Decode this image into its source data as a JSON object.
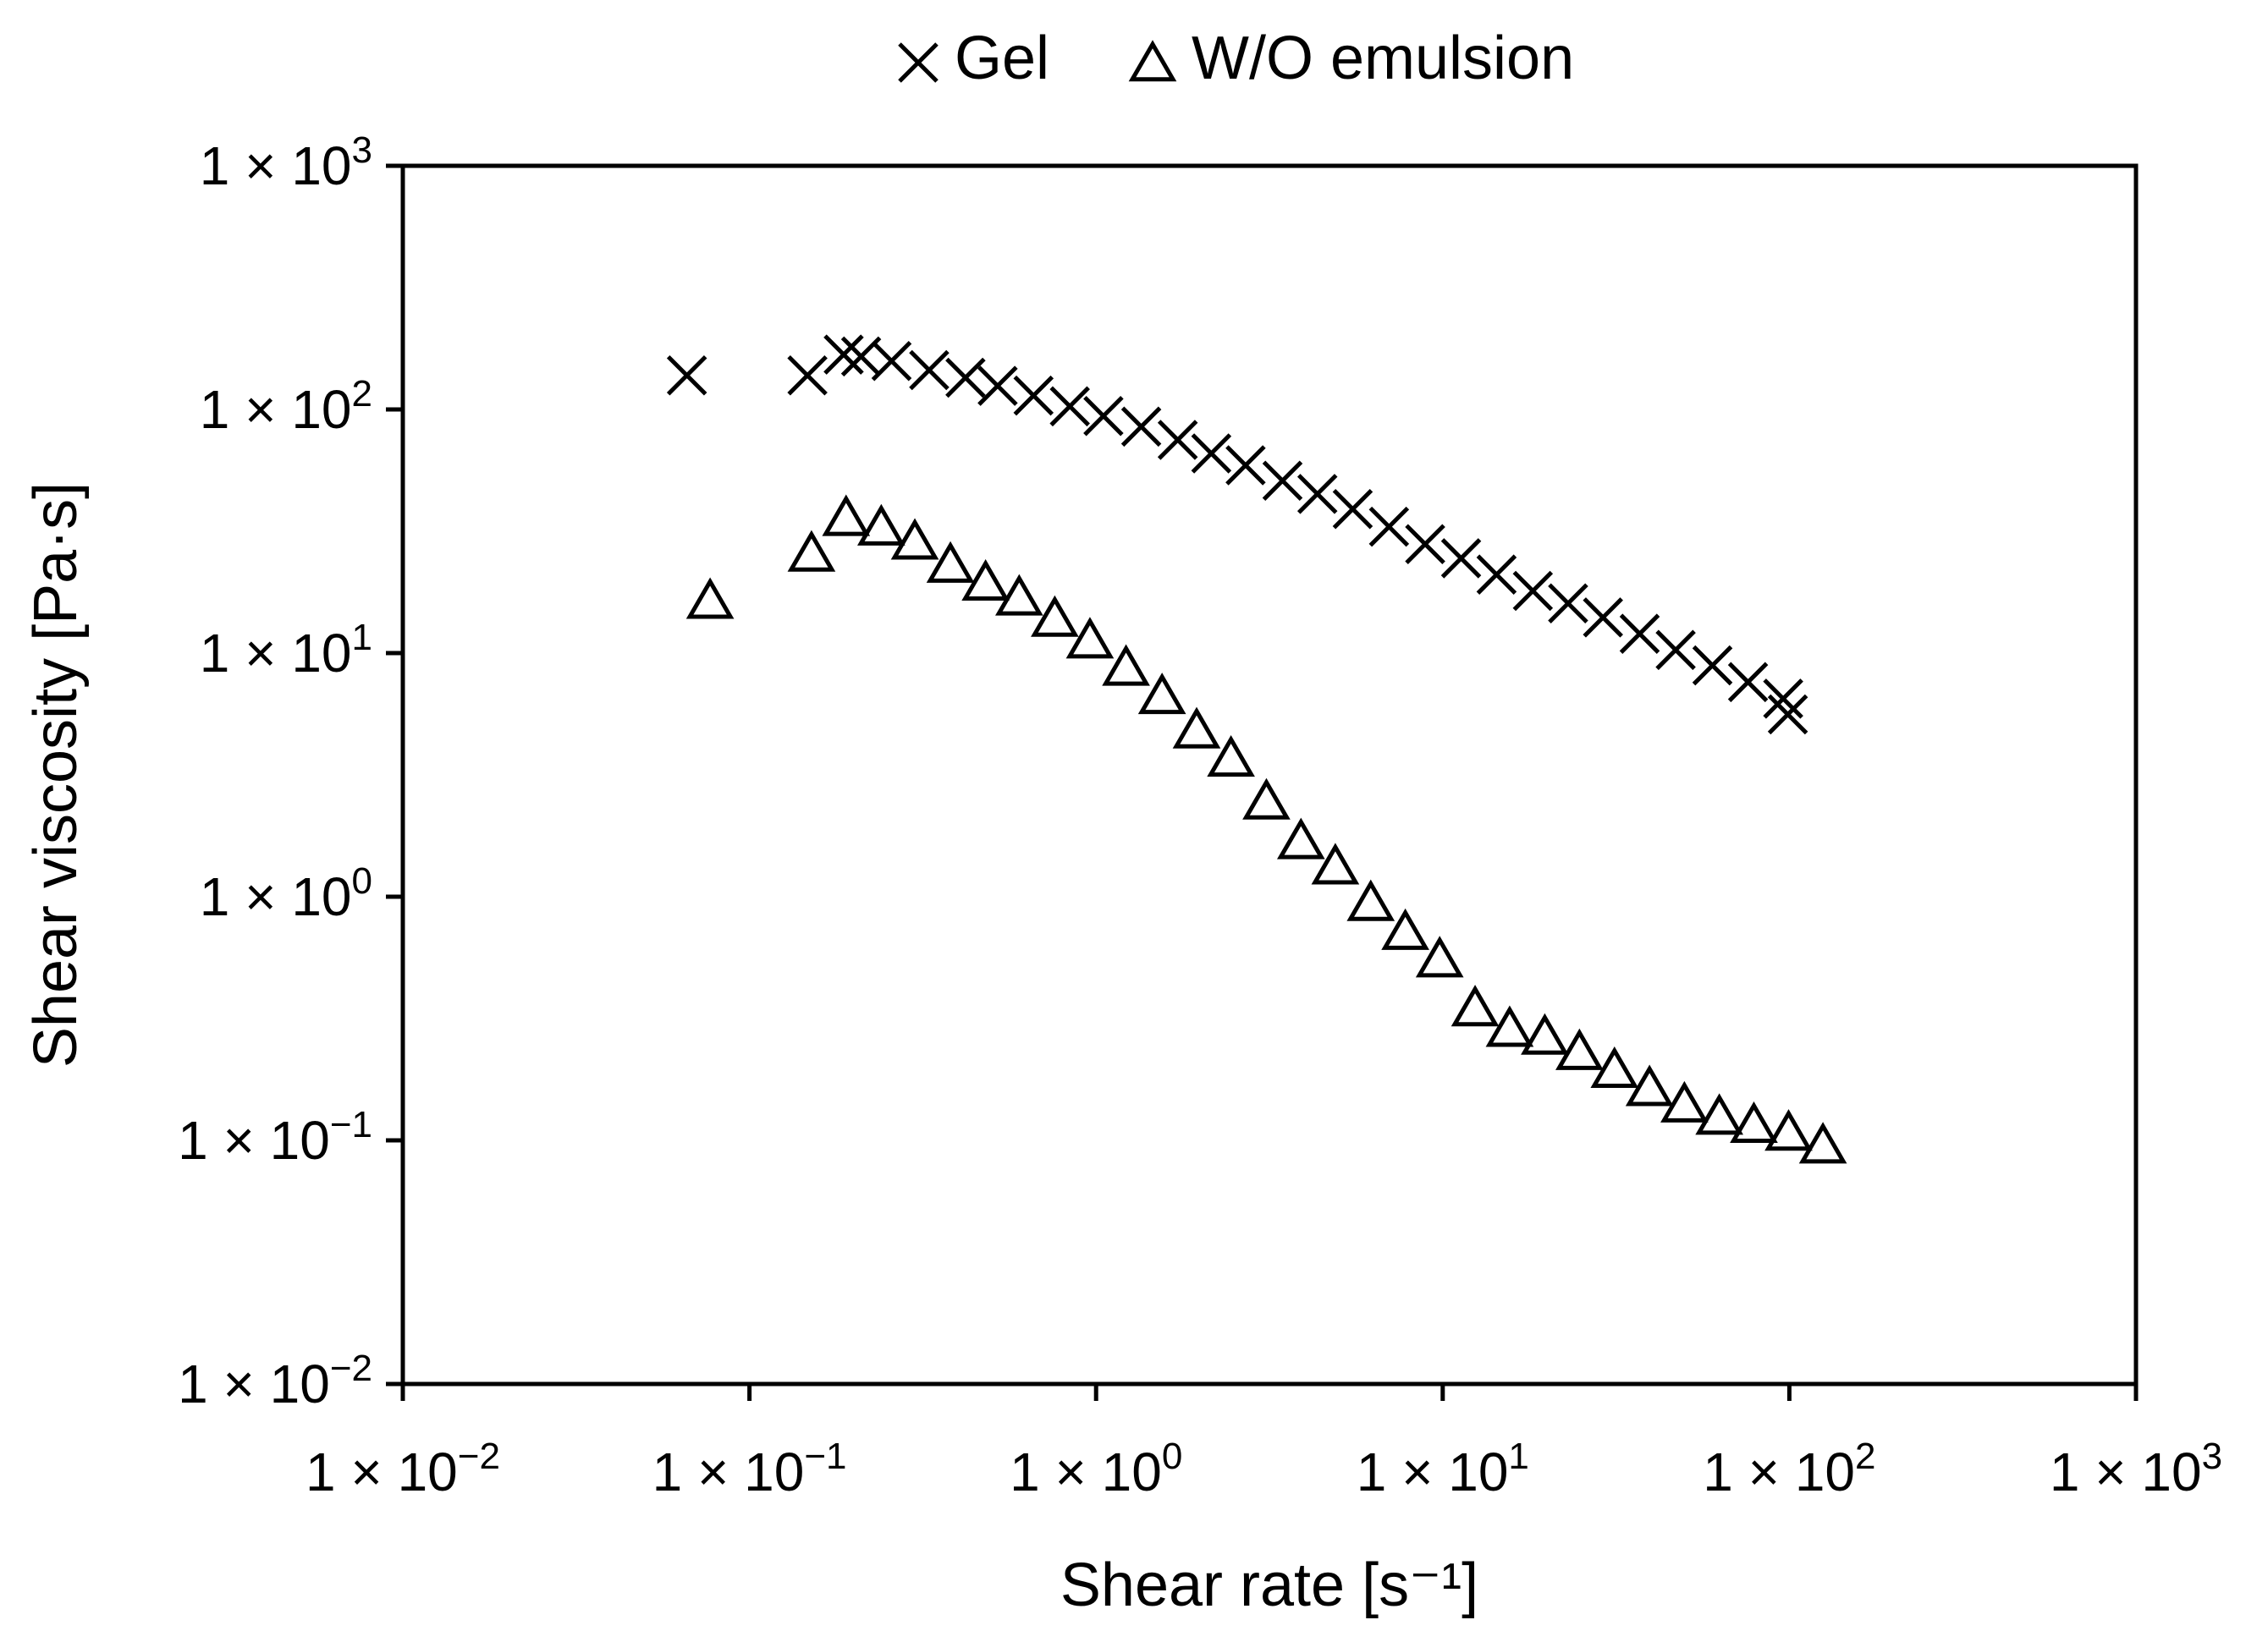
{
  "chart_data": {
    "type": "scatter",
    "xscale": "log",
    "yscale": "log",
    "xlabel": "Shear rate [s⁻¹]",
    "ylabel": "Shear viscosity [Pa·s]",
    "xlim": [
      0.01,
      1000
    ],
    "ylim": [
      0.01,
      1000
    ],
    "grid": false,
    "legend_position": "top-center",
    "xticks": [
      {
        "value": 0.01,
        "base": "1 × 10",
        "exp": "−2"
      },
      {
        "value": 0.1,
        "base": "1 × 10",
        "exp": "−1"
      },
      {
        "value": 1,
        "base": "1 × 10",
        "exp": "0"
      },
      {
        "value": 10,
        "base": "1 × 10",
        "exp": "1"
      },
      {
        "value": 100,
        "base": "1 × 10",
        "exp": "2"
      },
      {
        "value": 1000,
        "base": "1 × 10",
        "exp": "3"
      }
    ],
    "yticks": [
      {
        "value": 0.01,
        "base": "1 × 10",
        "exp": "−2"
      },
      {
        "value": 0.1,
        "base": "1 × 10",
        "exp": "−1"
      },
      {
        "value": 1,
        "base": "1 × 10",
        "exp": "0"
      },
      {
        "value": 10,
        "base": "1 × 10",
        "exp": "1"
      },
      {
        "value": 100,
        "base": "1 × 10",
        "exp": "2"
      },
      {
        "value": 1000,
        "base": "1 × 10",
        "exp": "3"
      }
    ],
    "series": [
      {
        "name": "Gel",
        "marker": "x",
        "color": "#000000",
        "points": [
          [
            0.066,
            138
          ],
          [
            0.147,
            138
          ],
          [
            0.187,
            168
          ],
          [
            0.21,
            165
          ],
          [
            0.257,
            158
          ],
          [
            0.33,
            145
          ],
          [
            0.42,
            135
          ],
          [
            0.52,
            125
          ],
          [
            0.66,
            114
          ],
          [
            0.84,
            103
          ],
          [
            1.05,
            94
          ],
          [
            1.35,
            85
          ],
          [
            1.72,
            75
          ],
          [
            2.15,
            66
          ],
          [
            2.7,
            59
          ],
          [
            3.45,
            51
          ],
          [
            4.35,
            45
          ],
          [
            5.5,
            39
          ],
          [
            7.0,
            33
          ],
          [
            8.9,
            28
          ],
          [
            11.3,
            24.5
          ],
          [
            14.3,
            21
          ],
          [
            18.2,
            18
          ],
          [
            23,
            16
          ],
          [
            29,
            14
          ],
          [
            37,
            12
          ],
          [
            47,
            10.3
          ],
          [
            60,
            8.9
          ],
          [
            76,
            7.6
          ],
          [
            96,
            6.5
          ],
          [
            99,
            5.6
          ]
        ]
      },
      {
        "name": "W/O emulsion",
        "marker": "triangle",
        "color": "#000000",
        "points": [
          [
            0.077,
            16
          ],
          [
            0.151,
            25
          ],
          [
            0.19,
            35
          ],
          [
            0.24,
            32
          ],
          [
            0.3,
            28
          ],
          [
            0.38,
            22.5
          ],
          [
            0.48,
            19
          ],
          [
            0.6,
            16.5
          ],
          [
            0.76,
            13.5
          ],
          [
            0.96,
            11
          ],
          [
            1.22,
            8.5
          ],
          [
            1.55,
            6.5
          ],
          [
            1.95,
            4.7
          ],
          [
            2.45,
            3.6
          ],
          [
            3.1,
            2.4
          ],
          [
            3.9,
            1.65
          ],
          [
            4.9,
            1.3
          ],
          [
            6.2,
            0.92
          ],
          [
            7.8,
            0.7
          ],
          [
            9.8,
            0.54
          ],
          [
            12.4,
            0.34
          ],
          [
            15.6,
            0.28
          ],
          [
            19.7,
            0.26
          ],
          [
            24.8,
            0.225
          ],
          [
            31.3,
            0.19
          ],
          [
            39.5,
            0.16
          ],
          [
            49.8,
            0.137
          ],
          [
            62.8,
            0.122
          ],
          [
            79,
            0.113
          ],
          [
            99.5,
            0.105
          ],
          [
            125,
            0.093
          ]
        ]
      }
    ]
  }
}
